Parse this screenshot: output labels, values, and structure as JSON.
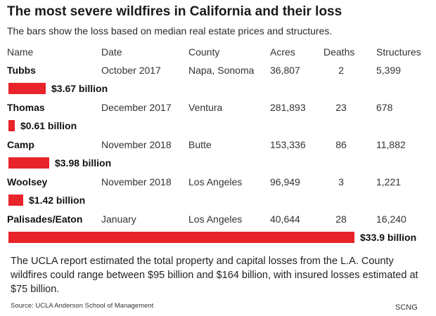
{
  "title": "The most severe wildfires in California and their loss",
  "subtitle": "The bars show the loss based on median real estate prices and structures.",
  "columns": [
    "Name",
    "Date",
    "County",
    "Acres",
    "Deaths",
    "Structures"
  ],
  "bar_color": "#e8232a",
  "rows": [
    {
      "name": "Tubbs",
      "date": "October 2017",
      "county": "Napa, Sonoma",
      "acres": "36,807",
      "deaths": "2",
      "structures": "5,399",
      "loss_label": "$3.67 billion"
    },
    {
      "name": "Thomas",
      "date": "December 2017",
      "county": "Ventura",
      "acres": "281,893",
      "deaths": "23",
      "structures": "678",
      "loss_label": "$0.61 billion"
    },
    {
      "name": "Camp",
      "date": "November 2018",
      "county": "Butte",
      "acres": "153,336",
      "deaths": "86",
      "structures": "11,882",
      "loss_label": "$3.98 billion"
    },
    {
      "name": "Woolsey",
      "date": "November 2018",
      "county": "Los Angeles",
      "acres": "96,949",
      "deaths": "3",
      "structures": "1,221",
      "loss_label": "$1.42 billion"
    },
    {
      "name": "Palisades/Eaton",
      "date": "January",
      "county": "Los Angeles",
      "acres": "40,644",
      "deaths": "28",
      "structures": "16,240",
      "loss_label": "$33.9 billion"
    }
  ],
  "chart_data": {
    "type": "bar",
    "title": "The most severe wildfires in California and their loss",
    "subtitle": "The bars show the loss based on median real estate prices and structures.",
    "categories": [
      "Tubbs",
      "Thomas",
      "Camp",
      "Woolsey",
      "Palisades/Eaton"
    ],
    "values": [
      3.67,
      0.61,
      3.98,
      1.42,
      33.9
    ],
    "data_labels": [
      "$3.67 billion",
      "$0.61 billion",
      "$3.98 billion",
      "$1.42 billion",
      "$33.9 billion"
    ],
    "orientation": "horizontal",
    "xlim": [
      0,
      33.9
    ],
    "grid": false,
    "legend": "none"
  },
  "footnote": "The UCLA report estimated the total property and capital losses from the L.A. County wildfires could range between $95 billion and $164 billion, with insured losses estimated at $75 billion.",
  "source": "Source: UCLA Anderson School of Management",
  "credit": "SCNG"
}
